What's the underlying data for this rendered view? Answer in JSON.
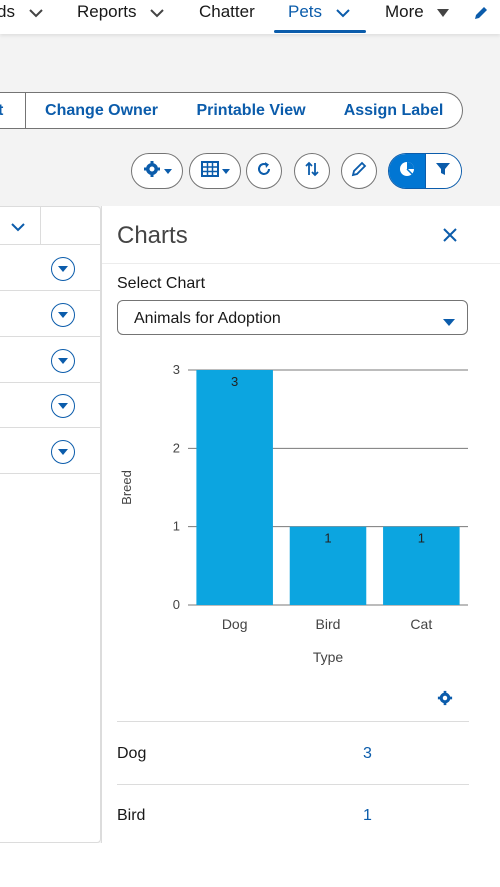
{
  "nav": {
    "items": [
      {
        "label": "ds"
      },
      {
        "label": "Reports"
      },
      {
        "label": "Chatter"
      },
      {
        "label": "Pets"
      },
      {
        "label": "More"
      }
    ]
  },
  "actions": {
    "partial": "t",
    "change_owner": "Change Owner",
    "printable_view": "Printable View",
    "assign_label": "Assign Label"
  },
  "toolbar_icons": [
    "gear-icon",
    "table-icon",
    "refresh-icon",
    "sort-icon",
    "pencil-icon",
    "chart-icon",
    "filter-icon"
  ],
  "panel": {
    "title": "Charts",
    "select_label": "Select Chart",
    "select_value": "Animals for Adoption"
  },
  "chart_data": {
    "type": "bar",
    "categories": [
      "Dog",
      "Bird",
      "Cat"
    ],
    "values": [
      3,
      1,
      1
    ],
    "data_labels": [
      "3",
      "1",
      "1"
    ],
    "xlabel": "Type",
    "ylabel": "Breed",
    "ylim": [
      0,
      3
    ],
    "yticks": [
      0,
      1,
      2,
      3
    ],
    "grid": true,
    "bar_color": "#0ca5e0"
  },
  "summary": [
    {
      "label": "Dog",
      "value": "3"
    },
    {
      "label": "Bird",
      "value": "1"
    }
  ],
  "colors": {
    "brand": "#0b5cab",
    "brand_fill": "#0176d3",
    "bar": "#0ca5e0"
  }
}
